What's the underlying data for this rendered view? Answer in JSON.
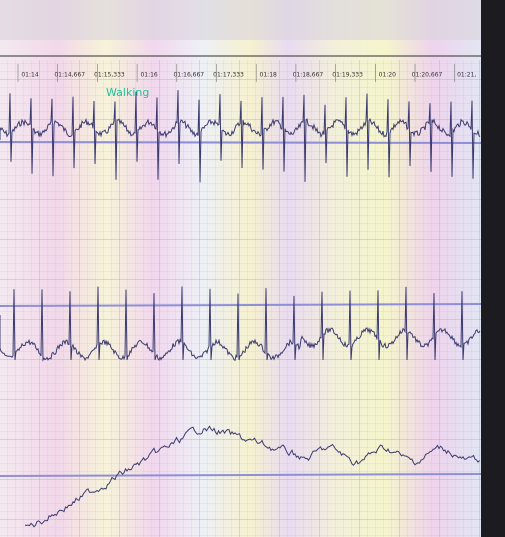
{
  "timeline": {
    "labels": [
      "01:14",
      "01:14,667",
      "01:15,333",
      "01:16",
      "01:16,667",
      "01:17,333",
      "01:18",
      "01:18,667",
      "01:19,333",
      "01:20",
      "01:20,667",
      "01:21,"
    ]
  },
  "annotation": "Walking"
}
